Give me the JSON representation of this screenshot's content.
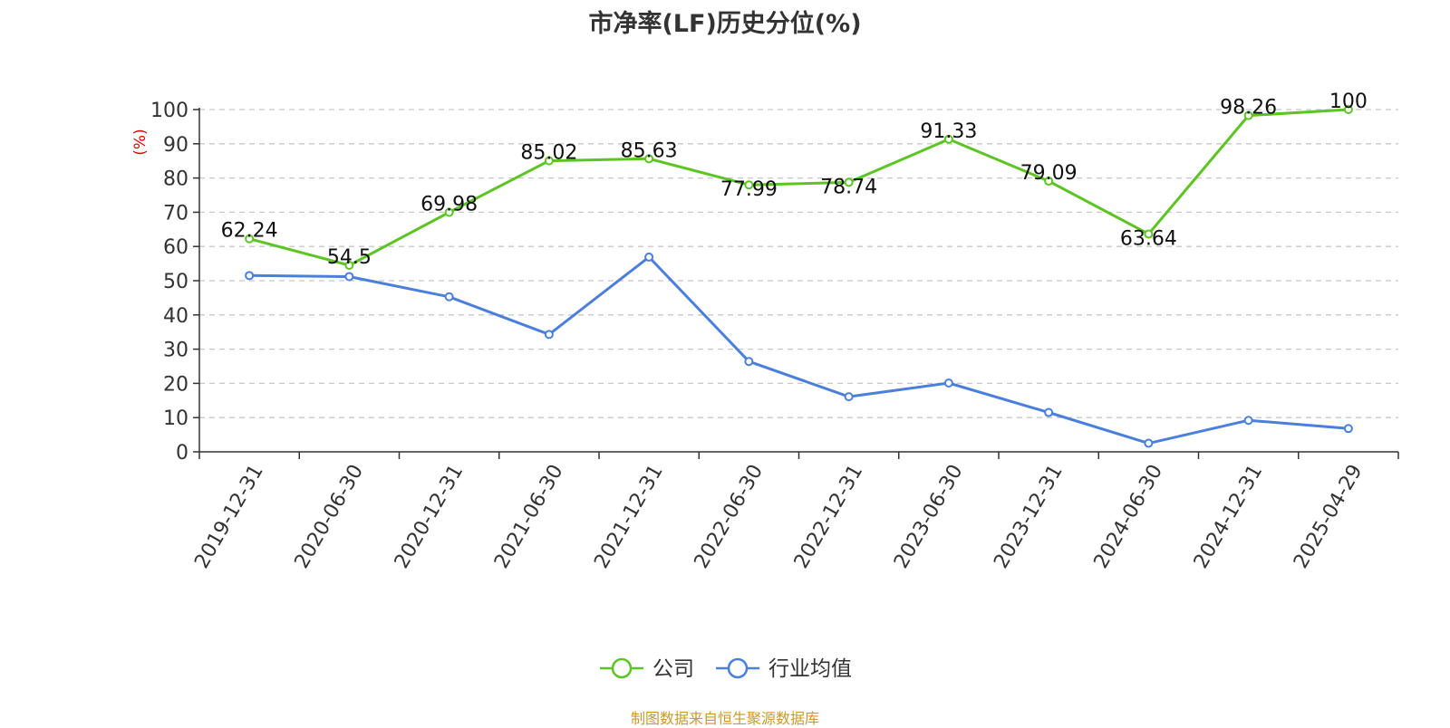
{
  "title": "市净率(LF)历史分位(%)",
  "source_text": "制图数据来自恒生聚源数据库",
  "colors": {
    "company": "#5cc423",
    "industry": "#4a7fdb",
    "ylabel": "#e00000",
    "source": "#c79a2a",
    "grid": "#c8c8c8",
    "axis": "#333333"
  },
  "chart_data": {
    "type": "line",
    "title": "市净率(LF)历史分位(%)",
    "ylabel": "(%)",
    "xlabel": "",
    "ylim": [
      0,
      100
    ],
    "yticks": [
      0,
      10,
      20,
      30,
      40,
      50,
      60,
      70,
      80,
      90,
      100
    ],
    "grid": true,
    "legend_position": "bottom",
    "categories": [
      "2019-12-31",
      "2020-06-30",
      "2020-12-31",
      "2021-06-30",
      "2021-12-31",
      "2022-06-30",
      "2022-12-31",
      "2023-06-30",
      "2023-12-31",
      "2024-06-30",
      "2024-12-31",
      "2025-04-29"
    ],
    "series": [
      {
        "name": "公司",
        "color": "#5cc423",
        "values": [
          62.24,
          54.5,
          69.98,
          85.02,
          85.63,
          77.99,
          78.74,
          91.33,
          79.09,
          63.64,
          98.26,
          100
        ],
        "labels": [
          "62.24",
          "54.5",
          "69.98",
          "85.02",
          "85.63",
          "77.99",
          "78.74",
          "91.33",
          "79.09",
          "63.64",
          "98.26",
          "100"
        ],
        "label_pos": [
          "above",
          "above",
          "above",
          "above",
          "above",
          "below",
          "below",
          "above",
          "above",
          "below",
          "above",
          "above"
        ]
      },
      {
        "name": "行业均值",
        "color": "#4a7fdb",
        "values": [
          51.5,
          51.2,
          45.3,
          34.3,
          56.9,
          26.4,
          16.1,
          20.1,
          11.5,
          2.5,
          9.2,
          6.8
        ]
      }
    ]
  }
}
